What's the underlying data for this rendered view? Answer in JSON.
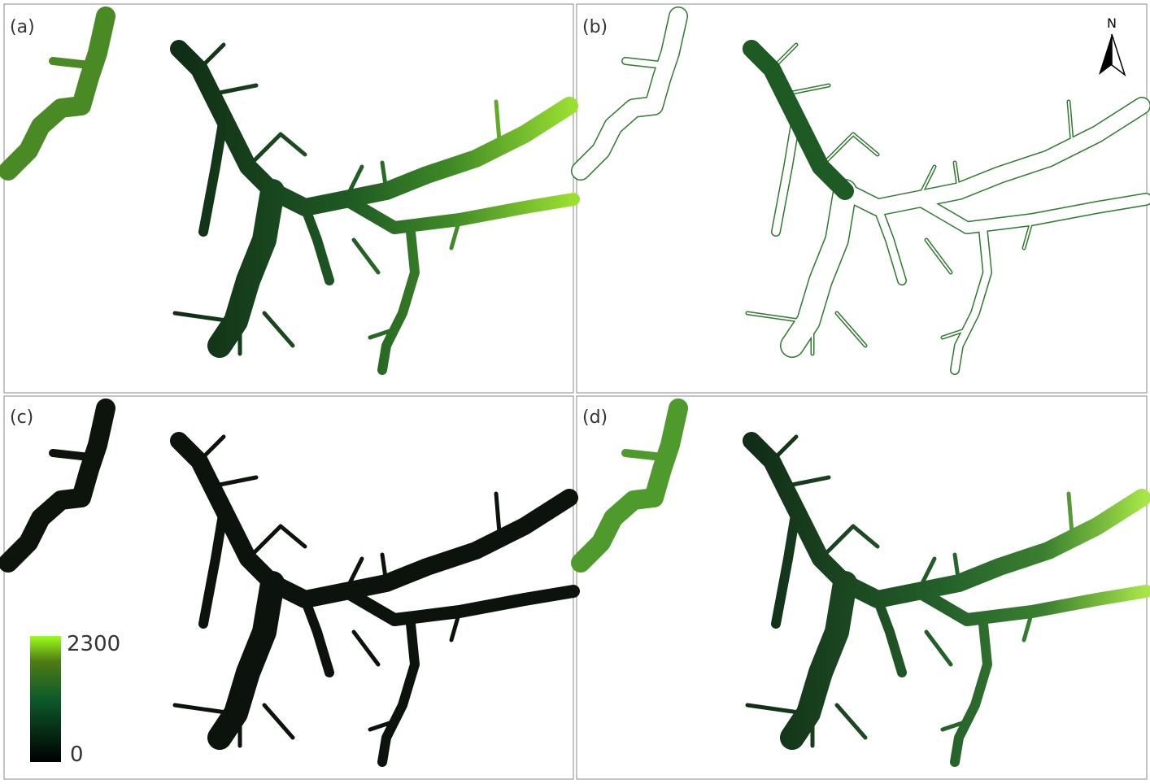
{
  "panels": [
    {
      "label": "(a)"
    },
    {
      "label": "(b)"
    },
    {
      "label": "(c)"
    },
    {
      "label": "(d)"
    }
  ],
  "north_arrow": {
    "label": "N"
  },
  "colorbar": {
    "max": 2300,
    "min": 0
  }
}
